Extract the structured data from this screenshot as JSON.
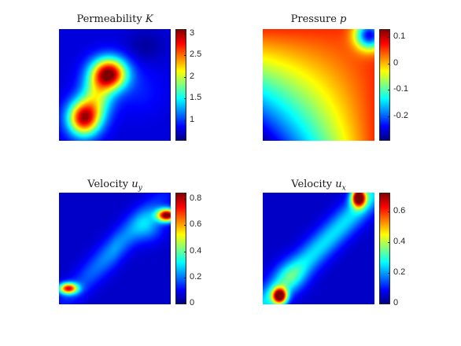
{
  "chart_data": [
    {
      "type": "heatmap",
      "title_text": "Permeability",
      "title_symbol": "K",
      "title_subscript": "",
      "colormap": "jet",
      "clim": [
        0.55,
        3.1
      ],
      "colorbar_ticks": [
        "1",
        "1.5",
        "2",
        "2.5",
        "3"
      ],
      "colorbar_tick_values": [
        1,
        1.5,
        2,
        2.5,
        3
      ],
      "grid": false
    },
    {
      "type": "heatmap",
      "title_text": "Pressure",
      "title_symbol": "p",
      "title_subscript": "",
      "colormap": "jet",
      "clim": [
        -0.29,
        0.13
      ],
      "colorbar_ticks": [
        "0.1",
        "0",
        "-0.1",
        "-0.2"
      ],
      "colorbar_tick_values": [
        0.1,
        0,
        -0.1,
        -0.2
      ],
      "grid": false
    },
    {
      "type": "heatmap",
      "title_text": "Velocity",
      "title_symbol": "u",
      "title_subscript": "y",
      "colormap": "jet",
      "clim": [
        0,
        0.85
      ],
      "colorbar_ticks": [
        "0",
        "0.2",
        "0.4",
        "0.6",
        "0.8"
      ],
      "colorbar_tick_values": [
        0,
        0.2,
        0.4,
        0.6,
        0.8
      ],
      "grid": false
    },
    {
      "type": "heatmap",
      "title_text": "Velocity",
      "title_symbol": "u",
      "title_subscript": "x",
      "colormap": "jet",
      "clim": [
        0,
        0.72
      ],
      "colorbar_ticks": [
        "0",
        "0.2",
        "0.4",
        "0.6"
      ],
      "colorbar_tick_values": [
        0,
        0.2,
        0.4,
        0.6
      ],
      "grid": false
    }
  ]
}
